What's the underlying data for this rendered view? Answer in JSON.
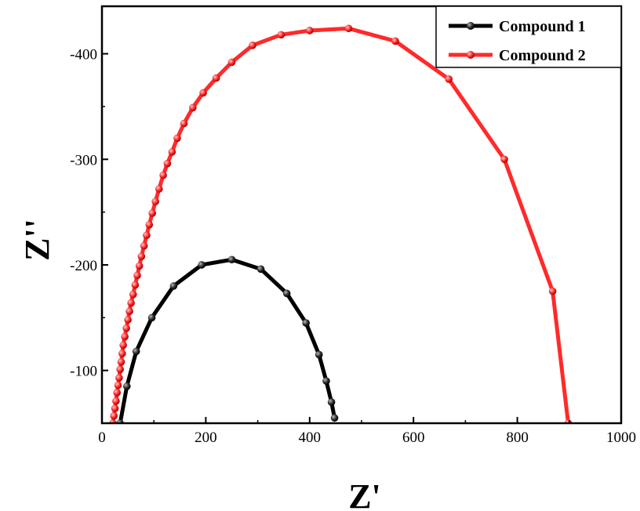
{
  "chart_data": {
    "type": "scatter",
    "xlabel": "Z'",
    "ylabel": "Z''",
    "xlim": [
      0,
      1000
    ],
    "ylim": [
      -50,
      -445
    ],
    "xticks": [
      "0",
      "200",
      "400",
      "600",
      "800",
      "1000"
    ],
    "yticks": [
      "-100",
      "-200",
      "-300",
      "-400"
    ],
    "xtick_values": [
      0,
      200,
      400,
      600,
      800,
      1000
    ],
    "ytick_values": [
      -100,
      -200,
      -300,
      -400
    ],
    "legend_position": "top-right",
    "series": [
      {
        "name": "Compound 1",
        "color": "#000000",
        "points": [
          [
            35,
            -50
          ],
          [
            48,
            -85
          ],
          [
            66,
            -118
          ],
          [
            96,
            -150
          ],
          [
            138,
            -180
          ],
          [
            192,
            -200
          ],
          [
            250,
            -205
          ],
          [
            306,
            -196
          ],
          [
            356,
            -173
          ],
          [
            393,
            -145
          ],
          [
            418,
            -115
          ],
          [
            432,
            -90
          ],
          [
            442,
            -70
          ],
          [
            448,
            -55
          ]
        ]
      },
      {
        "name": "Compound 2",
        "color": "#ff2a2a",
        "points": [
          [
            21,
            -50
          ],
          [
            23,
            -57
          ],
          [
            25,
            -64
          ],
          [
            27,
            -71
          ],
          [
            29,
            -79
          ],
          [
            31,
            -86
          ],
          [
            33,
            -93
          ],
          [
            35,
            -101
          ],
          [
            37,
            -108
          ],
          [
            39,
            -116
          ],
          [
            41,
            -124
          ],
          [
            44,
            -132
          ],
          [
            47,
            -140
          ],
          [
            50,
            -148
          ],
          [
            53,
            -156
          ],
          [
            56,
            -164
          ],
          [
            60,
            -172
          ],
          [
            64,
            -181
          ],
          [
            68,
            -190
          ],
          [
            72,
            -199
          ],
          [
            76,
            -208
          ],
          [
            81,
            -218
          ],
          [
            86,
            -228
          ],
          [
            91,
            -238
          ],
          [
            97,
            -249
          ],
          [
            103,
            -260
          ],
          [
            110,
            -272
          ],
          [
            118,
            -285
          ],
          [
            126,
            -296
          ],
          [
            135,
            -307
          ],
          [
            145,
            -320
          ],
          [
            158,
            -334
          ],
          [
            175,
            -349
          ],
          [
            195,
            -363
          ],
          [
            220,
            -377
          ],
          [
            250,
            -392
          ],
          [
            290,
            -408
          ],
          [
            345,
            -418
          ],
          [
            400,
            -422
          ],
          [
            475,
            -424
          ],
          [
            565,
            -412
          ],
          [
            668,
            -376
          ],
          [
            775,
            -300
          ],
          [
            868,
            -175
          ],
          [
            898,
            -50
          ]
        ]
      }
    ]
  }
}
